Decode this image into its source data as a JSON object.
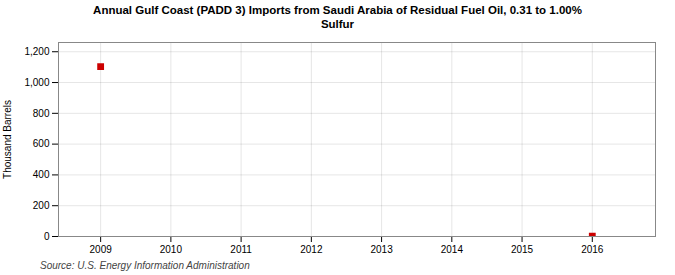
{
  "chart_data": {
    "type": "scatter",
    "title": "Annual Gulf Coast (PADD 3) Imports from Saudi Arabia of Residual Fuel Oil, 0.31 to 1.00%\nSulfur",
    "ylabel": "Thousand Barrels",
    "source": "Source: U.S. Energy Information Administration",
    "x": [
      2009,
      2016
    ],
    "values": [
      1103,
      3
    ],
    "color": "#cc0000",
    "marker": "square",
    "xlim": [
      2008.4,
      2016.9
    ],
    "xticks": [
      2009,
      2010,
      2011,
      2012,
      2013,
      2014,
      2015,
      2016
    ],
    "ylim": [
      0,
      1260
    ],
    "yticks": [
      0,
      200,
      400,
      600,
      800,
      {
        "value": 1000,
        "label": "1,000"
      },
      {
        "value": 1200,
        "label": "1,200"
      }
    ],
    "grid": true
  }
}
